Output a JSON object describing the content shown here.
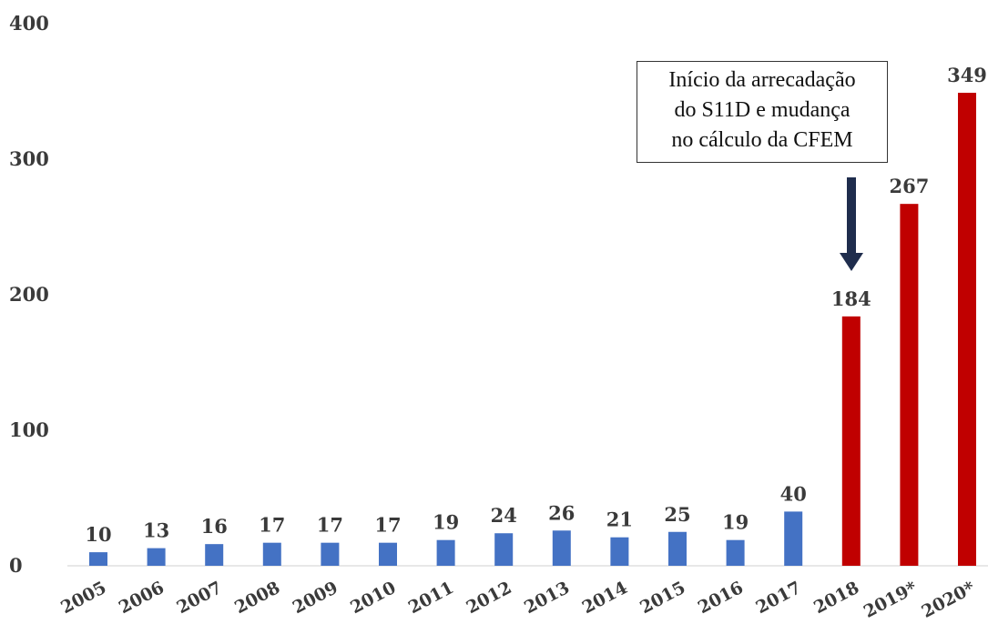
{
  "chart_data": {
    "type": "bar",
    "categories": [
      "2005",
      "2006",
      "2007",
      "2008",
      "2009",
      "2010",
      "2011",
      "2012",
      "2013",
      "2014",
      "2015",
      "2016",
      "2017",
      "2018",
      "2019*",
      "2020*"
    ],
    "values": [
      10,
      13,
      16,
      17,
      17,
      17,
      19,
      24,
      26,
      21,
      25,
      19,
      40,
      184,
      267,
      349
    ],
    "data_labels": [
      "10",
      "13",
      "16",
      "17",
      "17",
      "17",
      "19",
      "24",
      "26",
      "21",
      "25",
      "19",
      "40",
      "184",
      "267",
      "349"
    ],
    "colors": [
      "#4472c4",
      "#4472c4",
      "#4472c4",
      "#4472c4",
      "#4472c4",
      "#4472c4",
      "#4472c4",
      "#4472c4",
      "#4472c4",
      "#4472c4",
      "#4472c4",
      "#4472c4",
      "#4472c4",
      "#c00000",
      "#c00000",
      "#c00000"
    ],
    "yticks": [
      0,
      100,
      200,
      300,
      400
    ],
    "ylim": [
      0,
      400
    ],
    "title": "",
    "xlabel": "",
    "ylabel": "",
    "grid": false,
    "annotation": {
      "lines": [
        "Início da arrecadação",
        "do S11D e mudança",
        "no cálculo da CFEM"
      ],
      "points_to": "2018"
    }
  }
}
